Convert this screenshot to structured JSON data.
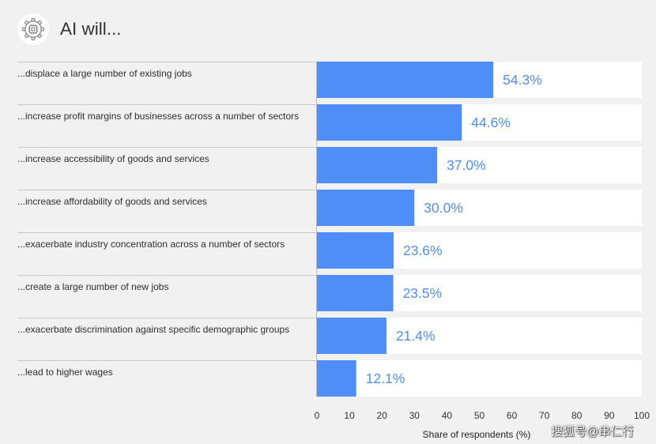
{
  "header": {
    "icon": "ai-chip-gear-icon"
  },
  "chart_data": {
    "type": "bar",
    "orientation": "horizontal",
    "title": "AI will...",
    "categories": [
      "...displace a large number of existing jobs",
      "...increase profit margins of businesses across a number of sectors",
      "...increase accessibility of goods and services",
      "...increase affordability of goods and services",
      "...exacerbate industry concentration across a number of sectors",
      "...create a large number of new jobs",
      "...exacerbate discrimination against specific demographic groups",
      "...lead to higher wages"
    ],
    "values": [
      54.3,
      44.6,
      37.0,
      30.0,
      23.6,
      23.5,
      21.4,
      12.1
    ],
    "value_labels": [
      "54.3%",
      "44.6%",
      "37.0%",
      "30.0%",
      "23.6%",
      "23.5%",
      "21.4%",
      "12.1%"
    ],
    "xlabel": "Share of respondents (%)",
    "ylabel": "",
    "xlim": [
      0,
      100
    ],
    "xticks": [
      0,
      10,
      20,
      30,
      40,
      50,
      60,
      70,
      80,
      90,
      100
    ],
    "grid": false,
    "legend": "none",
    "colors": {
      "bar": "#4f8ef7",
      "value_label": "#4f8ef7",
      "row_background": "#ffffff",
      "background": "#f1f1f1"
    }
  },
  "watermark": "搜狐号@串仁行"
}
